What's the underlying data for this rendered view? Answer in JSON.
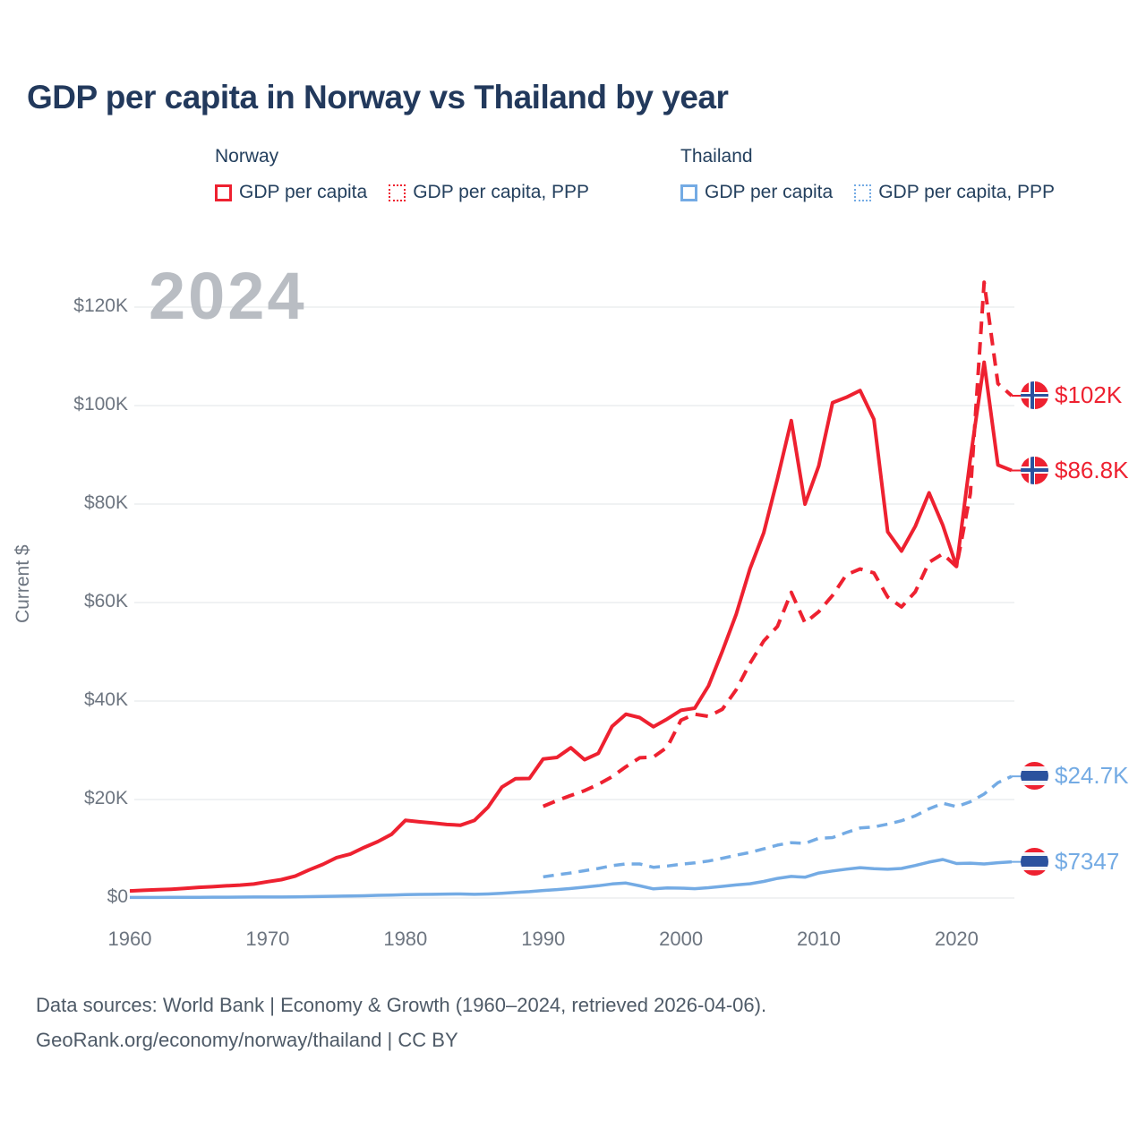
{
  "title": "GDP per capita in Norway vs Thailand by year",
  "watermark": "2024",
  "colors": {
    "norway": "#ee2130",
    "thailand": "#74abe4",
    "title_text": "#22395c",
    "axis_text": "#6d7580",
    "gridline": "#e8eaec",
    "watermark_text": "#b9bdc3",
    "footer_text": "#4e5a67"
  },
  "legend": {
    "groups": [
      {
        "country": "Norway",
        "items": [
          {
            "label": "GDP per capita",
            "style": "solid",
            "color": "#ee2130"
          },
          {
            "label": "GDP per capita, PPP",
            "style": "dotted",
            "color": "#ee2130"
          }
        ]
      },
      {
        "country": "Thailand",
        "items": [
          {
            "label": "GDP per capita",
            "style": "solid",
            "color": "#74abe4"
          },
          {
            "label": "GDP per capita, PPP",
            "style": "dotted",
            "color": "#74abe4"
          }
        ]
      }
    ]
  },
  "end_labels": [
    {
      "text": "$102K",
      "flag": "norway",
      "series_index": 1,
      "color": "red"
    },
    {
      "text": "$86.8K",
      "flag": "norway",
      "series_index": 0,
      "color": "red"
    },
    {
      "text": "$24.7K",
      "flag": "thailand",
      "series_index": 3,
      "color": "blue"
    },
    {
      "text": "$7347",
      "flag": "thailand",
      "series_index": 2,
      "color": "blue"
    }
  ],
  "footer": {
    "line1": "Data sources: World Bank | Economy & Growth (1960–2024, retrieved 2026-04-06).",
    "line2": "GeoRank.org/economy/norway/thailand | CC BY"
  },
  "chart_data": {
    "type": "line",
    "title": "GDP per capita in Norway vs Thailand by year",
    "xlabel": "",
    "ylabel": "Current $",
    "xlim": [
      1960,
      2024
    ],
    "ylim": [
      0,
      127000
    ],
    "grid": "horizontal-only",
    "legend_position": "top",
    "x_ticks": [
      1960,
      1970,
      1980,
      1990,
      2000,
      2010,
      2020
    ],
    "y_ticks": [
      {
        "value": 0,
        "label": "$0"
      },
      {
        "value": 20000,
        "label": "$20K"
      },
      {
        "value": 40000,
        "label": "$40K"
      },
      {
        "value": 60000,
        "label": "$60K"
      },
      {
        "value": 80000,
        "label": "$80K"
      },
      {
        "value": 100000,
        "label": "$100K"
      },
      {
        "value": 120000,
        "label": "$120K"
      }
    ],
    "series": [
      {
        "id": "norway-gdp",
        "name": "Norway GDP per capita",
        "color": "#ee2130",
        "dash": "solid",
        "width": 4,
        "start_year": 1960,
        "values": [
          1441,
          1560,
          1667,
          1776,
          1938,
          2165,
          2300,
          2473,
          2613,
          2832,
          3306,
          3736,
          4437,
          5689,
          6812,
          8205,
          8927,
          10261,
          11461,
          12939,
          15772,
          15474,
          15225,
          14936,
          14776,
          15745,
          18466,
          22510,
          24232,
          24280,
          28243,
          28554,
          30515,
          28097,
          29382,
          34875,
          37321,
          36630,
          34788,
          36340,
          38131,
          38551,
          43084,
          50107,
          57586,
          66810,
          74148,
          85171,
          96944,
          79977,
          87770,
          100601,
          101668,
          103059,
          97200,
          74356,
          70461,
          75497,
          82268,
          75720,
          67330,
          89203,
          108798,
          87925,
          86812
        ]
      },
      {
        "id": "norway-gdp-ppp",
        "name": "Norway GDP per capita, PPP",
        "color": "#ee2130",
        "dash": "dashed",
        "width": 4,
        "start_year": 1990,
        "values": [
          18627,
          19775,
          20818,
          21803,
          23075,
          24631,
          26656,
          28467,
          28634,
          30622,
          36102,
          37322,
          36890,
          38324,
          42274,
          47626,
          52183,
          55172,
          62067,
          55882,
          58139,
          61447,
          65640,
          66810,
          66019,
          61109,
          59111,
          62187,
          68166,
          69888,
          67294,
          82131,
          125034,
          104459,
          102000
        ]
      },
      {
        "id": "thailand-gdp",
        "name": "Thailand GDP per capita",
        "color": "#74abe4",
        "dash": "solid",
        "width": 3.5,
        "start_year": 1960,
        "values": [
          101,
          107,
          114,
          120,
          127,
          138,
          161,
          170,
          179,
          192,
          196,
          201,
          221,
          277,
          334,
          356,
          396,
          455,
          537,
          596,
          686,
          727,
          747,
          800,
          820,
          751,
          818,
          941,
          1128,
          1296,
          1526,
          1716,
          1928,
          2209,
          2492,
          2847,
          3043,
          2468,
          1846,
          2033,
          2008,
          1893,
          2096,
          2359,
          2660,
          2894,
          3369,
          3973,
          4379,
          4213,
          5076,
          5492,
          5861,
          6168,
          5952,
          5840,
          5995,
          6594,
          7296,
          7817,
          7002,
          7066,
          6909,
          7172,
          7347
        ]
      },
      {
        "id": "thailand-gdp-ppp",
        "name": "Thailand GDP per capita, PPP",
        "color": "#74abe4",
        "dash": "dashed",
        "width": 3.5,
        "start_year": 1990,
        "values": [
          4299,
          4716,
          5096,
          5537,
          6006,
          6564,
          6935,
          6900,
          6238,
          6485,
          6850,
          7123,
          7512,
          8072,
          8690,
          9247,
          9982,
          10741,
          11241,
          11092,
          12123,
          12268,
          13288,
          14220,
          14436,
          15009,
          15682,
          16690,
          18106,
          19228,
          18542,
          19549,
          21114,
          23422,
          24700
        ]
      }
    ]
  }
}
